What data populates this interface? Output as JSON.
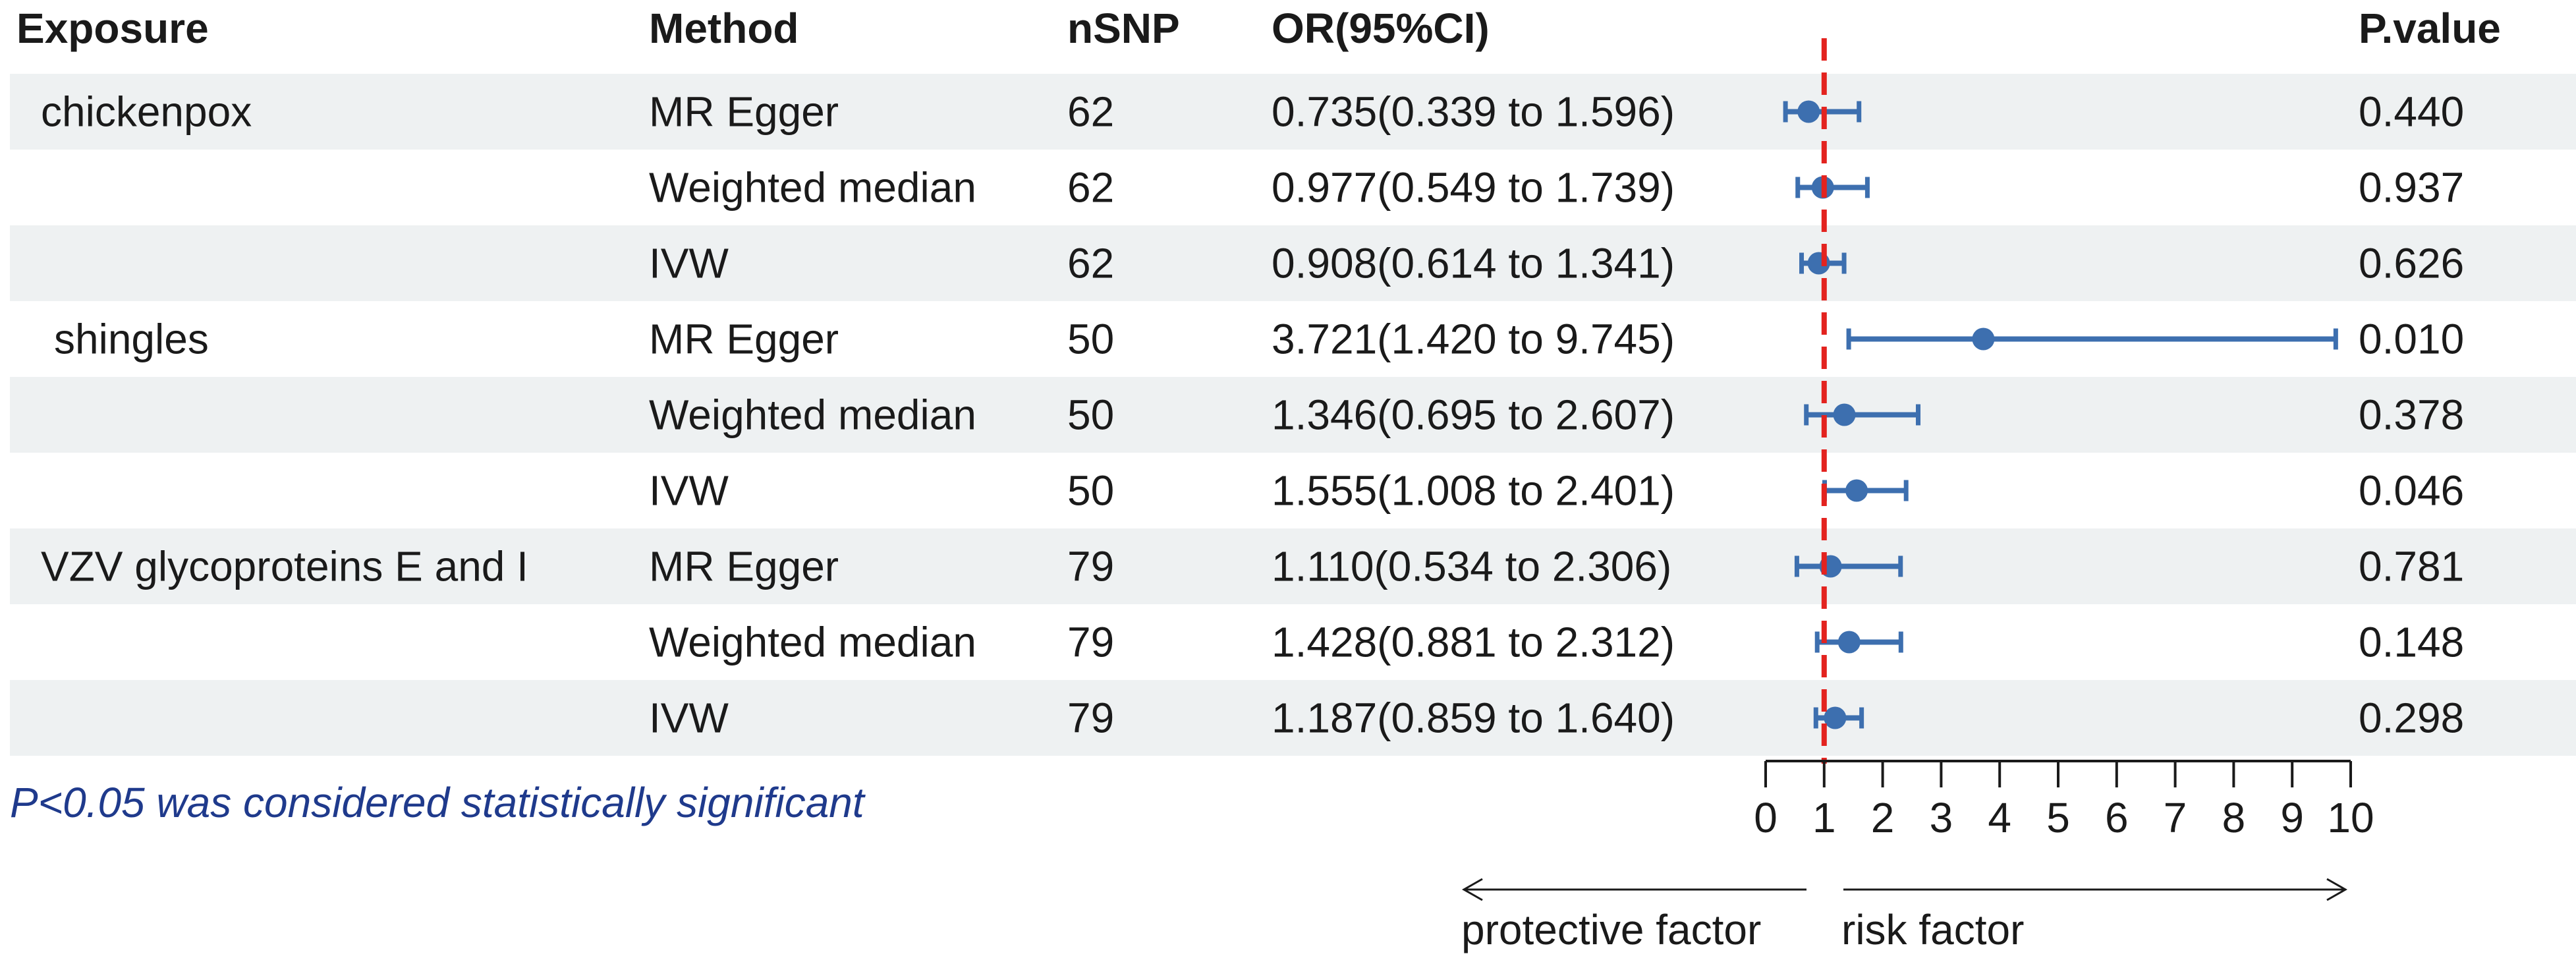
{
  "chart_data": {
    "type": "forest",
    "headers": {
      "exposure": "Exposure",
      "method": "Method",
      "nsnp": "nSNP",
      "or": "OR(95%CI)",
      "pvalue": "P.value"
    },
    "rows": [
      {
        "exposure": "chickenpox",
        "method": "MR Egger",
        "nsnp": "62",
        "or_text": "0.735(0.339 to 1.596)",
        "or": 0.735,
        "lower": 0.339,
        "upper": 1.596,
        "pvalue": "0.440"
      },
      {
        "exposure": "",
        "method": "Weighted median",
        "nsnp": "62",
        "or_text": "0.977(0.549 to 1.739)",
        "or": 0.977,
        "lower": 0.549,
        "upper": 1.739,
        "pvalue": "0.937"
      },
      {
        "exposure": "",
        "method": "IVW",
        "nsnp": "62",
        "or_text": "0.908(0.614 to 1.341)",
        "or": 0.908,
        "lower": 0.614,
        "upper": 1.341,
        "pvalue": "0.626"
      },
      {
        "exposure": "shingles",
        "method": "MR Egger",
        "nsnp": "50",
        "or_text": "3.721(1.420 to 9.745)",
        "or": 3.721,
        "lower": 1.42,
        "upper": 9.745,
        "pvalue": "0.010"
      },
      {
        "exposure": "",
        "method": "Weighted median",
        "nsnp": "50",
        "or_text": "1.346(0.695 to 2.607)",
        "or": 1.346,
        "lower": 0.695,
        "upper": 2.607,
        "pvalue": "0.378"
      },
      {
        "exposure": "",
        "method": "IVW",
        "nsnp": "50",
        "or_text": "1.555(1.008 to 2.401)",
        "or": 1.555,
        "lower": 1.008,
        "upper": 2.401,
        "pvalue": "0.046"
      },
      {
        "exposure": "VZV glycoproteins E and I",
        "method": "MR Egger",
        "nsnp": "79",
        "or_text": "1.110(0.534 to 2.306)",
        "or": 1.11,
        "lower": 0.534,
        "upper": 2.306,
        "pvalue": "0.781"
      },
      {
        "exposure": "",
        "method": "Weighted median",
        "nsnp": "79",
        "or_text": "1.428(0.881 to 2.312)",
        "or": 1.428,
        "lower": 0.881,
        "upper": 2.312,
        "pvalue": "0.148"
      },
      {
        "exposure": "",
        "method": "IVW",
        "nsnp": "79",
        "or_text": "1.187(0.859 to 1.640)",
        "or": 1.187,
        "lower": 0.859,
        "upper": 1.64,
        "pvalue": "0.298"
      }
    ],
    "x_axis": {
      "min": 0,
      "max": 10,
      "ticks": [
        0,
        1,
        2,
        3,
        4,
        5,
        6,
        7,
        8,
        9,
        10
      ],
      "reference_line": 1
    },
    "footnote": "P<0.05 was considered statistically significant",
    "direction_labels": {
      "left": "protective factor",
      "right": "risk factor"
    },
    "colors": {
      "band": "#eef1f2",
      "marker": "#3d6faf",
      "reference": "#e3231f",
      "footnote": "#1f3a8c",
      "text": "#1a1a1a"
    }
  }
}
